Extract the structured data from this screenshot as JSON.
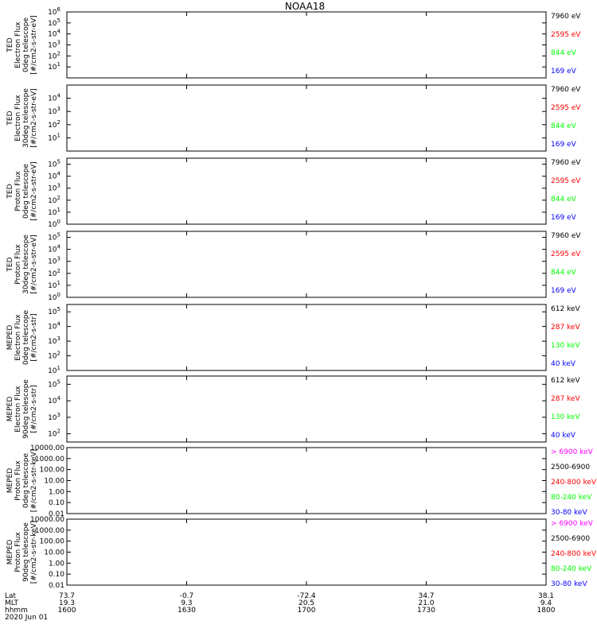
{
  "title": "NOAA18",
  "colors": {
    "blue": "#0000ff",
    "red": "#ff0000",
    "green": "#00ff00",
    "black": "#000000",
    "magenta": "#ff00ff"
  },
  "x_ticks": {
    "lat": [
      "73.7",
      "-0.7",
      "-72.4",
      "34.7",
      "38.1"
    ],
    "mlt": [
      "19.3",
      "9.3",
      "20.5",
      "21.0",
      "9.4"
    ],
    "hhmm": [
      "1600",
      "1630",
      "1700",
      "1730",
      "1800"
    ]
  },
  "x_row_labels": [
    "Lat",
    "MLT",
    "hhmm",
    "2020 Jun 01"
  ],
  "chart_data": [
    {
      "type": "line",
      "panel": "ted-electron-0deg",
      "ylabel": [
        "TED",
        "Electron Flux",
        "0deg telescope",
        "[#/cm2-s-str-eV]"
      ],
      "ytick_exps": [
        1,
        2,
        3,
        4,
        5,
        6
      ],
      "ylim_exp": [
        0,
        6
      ],
      "legend": [
        {
          "label": "7960 eV",
          "color": "#000000"
        },
        {
          "label": "2595 eV",
          "color": "#ff0000"
        },
        {
          "label": "844 eV",
          "color": "#00ff00"
        },
        {
          "label": "169 eV",
          "color": "#0000ff"
        }
      ]
    },
    {
      "type": "line",
      "panel": "ted-electron-30deg",
      "ylabel": [
        "TED",
        "Electron Flux",
        "30deg telescope",
        "[#/cm2-s-str-eV]"
      ],
      "ytick_exps": [
        1,
        2,
        3,
        4
      ],
      "ylim_exp": [
        0,
        5
      ],
      "legend": [
        {
          "label": "7960 eV",
          "color": "#000000"
        },
        {
          "label": "2595 eV",
          "color": "#ff0000"
        },
        {
          "label": "844 eV",
          "color": "#00ff00"
        },
        {
          "label": "169 eV",
          "color": "#0000ff"
        }
      ]
    },
    {
      "type": "line",
      "panel": "ted-proton-0deg",
      "ylabel": [
        "TED",
        "Proton Flux",
        "0deg telescope",
        "[#/cm2-s-str-eV]"
      ],
      "ytick_exps": [
        0,
        1,
        2,
        3,
        4,
        5
      ],
      "ylim_exp": [
        0,
        5.5
      ],
      "legend": [
        {
          "label": "7960 eV",
          "color": "#000000"
        },
        {
          "label": "2595 eV",
          "color": "#ff0000"
        },
        {
          "label": "844 eV",
          "color": "#00ff00"
        },
        {
          "label": "169 eV",
          "color": "#0000ff"
        }
      ]
    },
    {
      "type": "line",
      "panel": "ted-proton-30deg",
      "ylabel": [
        "TED",
        "Proton Flux",
        "30deg telescope",
        "[#/cm2-s-str-eV]"
      ],
      "ytick_exps": [
        0,
        1,
        2,
        3,
        4,
        5
      ],
      "ylim_exp": [
        0,
        5.5
      ],
      "legend": [
        {
          "label": "7960 eV",
          "color": "#000000"
        },
        {
          "label": "2595 eV",
          "color": "#ff0000"
        },
        {
          "label": "844 eV",
          "color": "#00ff00"
        },
        {
          "label": "169 eV",
          "color": "#0000ff"
        }
      ]
    },
    {
      "type": "line",
      "panel": "meped-electron-0deg",
      "ylabel": [
        "MEPED",
        "Electron Flux",
        "0deg telescope",
        "[#/cm2-s-str]"
      ],
      "ytick_exps": [
        1,
        2,
        3,
        4,
        5
      ],
      "ylim_exp": [
        1,
        5.5
      ],
      "legend": [
        {
          "label": "612 keV",
          "color": "#000000"
        },
        {
          "label": "287 keV",
          "color": "#ff0000"
        },
        {
          "label": "130 keV",
          "color": "#00ff00"
        },
        {
          "label": "40 keV",
          "color": "#0000ff"
        }
      ]
    },
    {
      "type": "line",
      "panel": "meped-electron-90deg",
      "ylabel": [
        "MEPED",
        "Electron Flux",
        "90deg telescope",
        "[#/cm2-s-str]"
      ],
      "ytick_exps": [
        2,
        3,
        4,
        5
      ],
      "ylim_exp": [
        1.5,
        5.5
      ],
      "legend": [
        {
          "label": "612 keV",
          "color": "#000000"
        },
        {
          "label": "287 keV",
          "color": "#ff0000"
        },
        {
          "label": "130 keV",
          "color": "#00ff00"
        },
        {
          "label": "40 keV",
          "color": "#0000ff"
        }
      ]
    },
    {
      "type": "line",
      "panel": "meped-proton-0deg",
      "ylabel": [
        "MEPED",
        "Proton Flux",
        "0deg telescope",
        "[#/cm2-s-str-keV]"
      ],
      "ytick_labels": [
        "0.01",
        "0.10",
        "1.00",
        "10.00",
        "100.00",
        "1000.00",
        "10000.00"
      ],
      "ylim": [
        0.01,
        10000
      ],
      "legend": [
        {
          "label": "> 6900 keV",
          "color": "#ff00ff"
        },
        {
          "label": "2500-6900",
          "color": "#000000"
        },
        {
          "label": "240-800 keV",
          "color": "#ff0000"
        },
        {
          "label": "80-240 keV",
          "color": "#00ff00"
        },
        {
          "label": "30-80 keV",
          "color": "#0000ff"
        }
      ]
    },
    {
      "type": "line",
      "panel": "meped-proton-90deg",
      "ylabel": [
        "MEPED",
        "Proton Flux",
        "90deg telescope",
        "[#/cm2-s-str-keV]"
      ],
      "ytick_labels": [
        "0.01",
        "0.10",
        "1.00",
        "10.00",
        "100.00",
        "1000.00",
        "10000.00"
      ],
      "ylim": [
        0.01,
        10000
      ],
      "legend": [
        {
          "label": "> 6900 keV",
          "color": "#ff00ff"
        },
        {
          "label": "2500-6900",
          "color": "#000000"
        },
        {
          "label": "240-800 keV",
          "color": "#ff0000"
        },
        {
          "label": "80-240 keV",
          "color": "#00ff00"
        },
        {
          "label": "30-80 keV",
          "color": "#0000ff"
        }
      ]
    }
  ]
}
